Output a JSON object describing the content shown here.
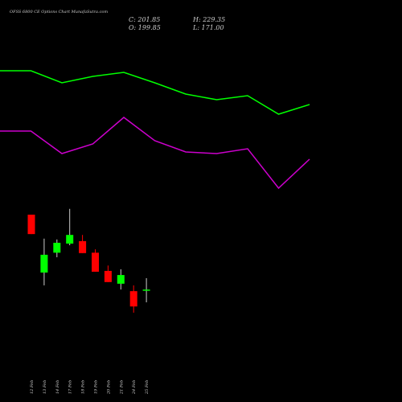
{
  "chart_data": {
    "type": "candlestick",
    "title": "OFSS 6800  CE Options  Chart MunafaSutra.com",
    "close_label": "C: 201.85",
    "high_label": "H: 229.35",
    "open_label": "O: 199.85",
    "low_label": "L: 171.00",
    "categories": [
      "12 Feb",
      "13 Feb",
      "14 Feb",
      "17 Feb",
      "18 Feb",
      "19 Feb",
      "20 Feb",
      "21 Feb",
      "24 Feb",
      "25 Feb"
    ],
    "open": [
      383,
      243,
      291,
      313,
      319,
      291,
      247,
      216,
      198,
      199.85
    ],
    "close": [
      336,
      286,
      315,
      334,
      290,
      245,
      220,
      237,
      161,
      201.85
    ],
    "high": [
      383,
      325,
      323,
      397,
      334,
      299,
      260,
      251,
      212,
      229.35
    ],
    "low": [
      336,
      212,
      280,
      309,
      290,
      245,
      220,
      202,
      146,
      171.0
    ],
    "up_color": "#00ff00",
    "down_color": "#ff0000",
    "ylim": [
      -70,
      902
    ],
    "indicators": {
      "ylim": [
        0,
        100
      ],
      "x": [
        0,
        1,
        2,
        3,
        4,
        5,
        6,
        7,
        8,
        9,
        10
      ],
      "series": [
        {
          "color": "#00ff00",
          "values": [
            82.4,
            82.4,
            79.4,
            81,
            82,
            79.4,
            76.6,
            75.2,
            76.2,
            71.6,
            74
          ]
        },
        {
          "color": "#cc00cc",
          "values": [
            67.4,
            67.4,
            61.8,
            64.2,
            70.8,
            65,
            62.2,
            61.8,
            63,
            53.2,
            60.4
          ]
        }
      ]
    }
  }
}
